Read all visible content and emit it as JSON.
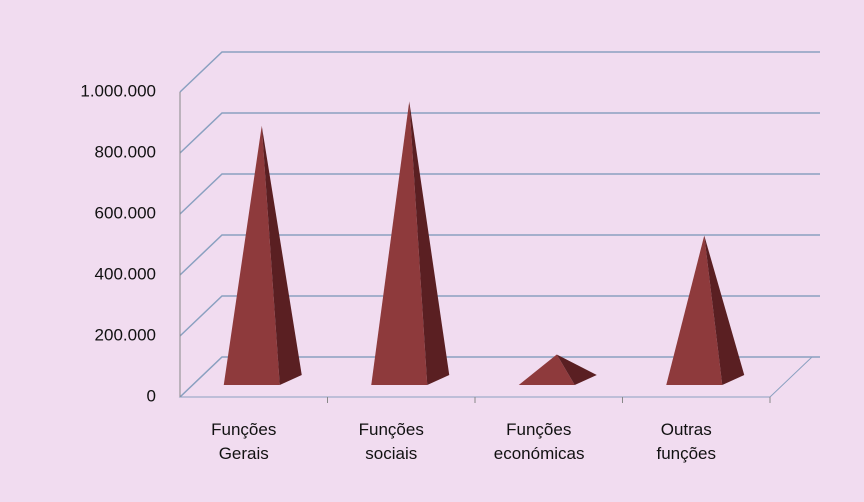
{
  "chart_data": {
    "type": "pyramid3d",
    "categories": [
      "Funções Gerais",
      "Funções sociais",
      "Funções económicas",
      "Outras funções"
    ],
    "values": [
      850000,
      930000,
      100000,
      490000
    ],
    "color": "#8e3a3c",
    "ylim": [
      0,
      1000000
    ],
    "yticks": [
      0,
      {
        "value": 200000,
        "label": "200.000"
      },
      {
        "value": 400000,
        "label": "400.000"
      },
      {
        "value": 600000,
        "label": "600.000"
      },
      {
        "value": 800000,
        "label": "800.000"
      },
      {
        "value": 1000000,
        "label": "1.000.000"
      }
    ],
    "grid": true
  }
}
